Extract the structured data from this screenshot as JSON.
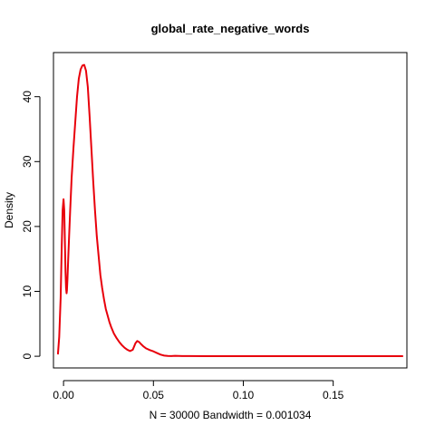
{
  "chart_data": {
    "type": "line",
    "title": "global_rate_negative_words",
    "xlabel": "N = 30000   Bandwidth = 0.001034",
    "ylabel": "Density",
    "xlim": [
      -0.0056,
      0.191
    ],
    "ylim": [
      -1.8,
      46.8
    ],
    "x_ticks": [
      0.0,
      0.05,
      0.1,
      0.15
    ],
    "x_tick_labels": [
      "0.00",
      "0.05",
      "0.10",
      "0.15"
    ],
    "y_ticks": [
      0,
      10,
      20,
      30,
      40
    ],
    "y_tick_labels": [
      "0",
      "10",
      "20",
      "30",
      "40"
    ],
    "grid": false,
    "legend": "none",
    "series": [
      {
        "color": "#e8000b",
        "x": [
          -0.0031,
          -0.0024,
          -0.0016,
          -0.001,
          -0.0005,
          0.0,
          0.0004,
          0.0008,
          0.0011,
          0.0014,
          0.0017,
          0.0019,
          0.0022,
          0.0026,
          0.0031,
          0.0037,
          0.0045,
          0.0055,
          0.0065,
          0.0075,
          0.0085,
          0.0095,
          0.0105,
          0.0115,
          0.0125,
          0.0135,
          0.0145,
          0.0155,
          0.0165,
          0.0175,
          0.0185,
          0.0195,
          0.0205,
          0.0215,
          0.0225,
          0.0235,
          0.0245,
          0.0255,
          0.0265,
          0.028,
          0.0295,
          0.031,
          0.0325,
          0.034,
          0.0355,
          0.037,
          0.0385,
          0.04,
          0.041,
          0.042,
          0.043,
          0.0445,
          0.046,
          0.048,
          0.05,
          0.052,
          0.054,
          0.056,
          0.058,
          0.06,
          0.062,
          0.064,
          0.066,
          0.07,
          0.08,
          0.09,
          0.1,
          0.11,
          0.12,
          0.13,
          0.14,
          0.15,
          0.16,
          0.17,
          0.18,
          0.1885
        ],
        "y": [
          0.4,
          3.0,
          9.0,
          17.0,
          22.5,
          24.2,
          22.5,
          17.0,
          13.0,
          10.5,
          9.7,
          10.2,
          12.0,
          15.0,
          18.5,
          22.5,
          27.5,
          32.0,
          36.0,
          40.0,
          42.8,
          44.2,
          44.8,
          44.9,
          44.0,
          41.5,
          37.0,
          32.0,
          27.0,
          22.5,
          18.5,
          15.5,
          12.5,
          10.5,
          8.8,
          7.3,
          6.3,
          5.3,
          4.5,
          3.5,
          2.8,
          2.2,
          1.7,
          1.3,
          1.0,
          0.8,
          1.0,
          2.0,
          2.35,
          2.2,
          1.9,
          1.5,
          1.2,
          0.95,
          0.75,
          0.5,
          0.25,
          0.1,
          0.05,
          0.04,
          0.06,
          0.05,
          0.03,
          0.03,
          0.02,
          0.02,
          0.02,
          0.01,
          0.02,
          0.02,
          0.01,
          0.02,
          0.01,
          0.01,
          0.01,
          0.01
        ]
      }
    ]
  }
}
